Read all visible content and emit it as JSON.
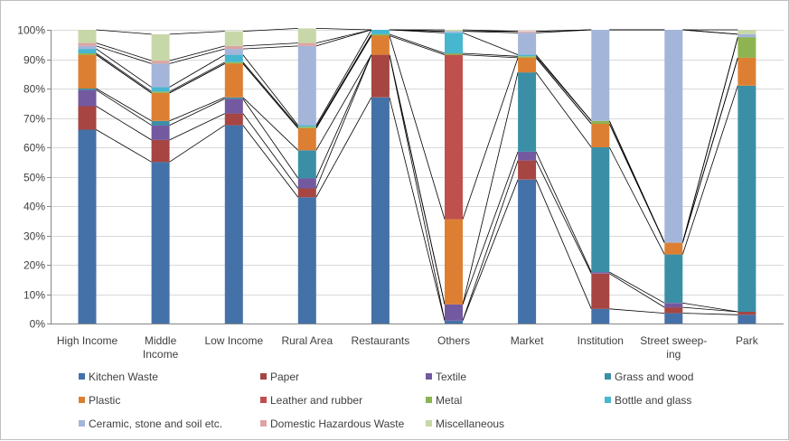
{
  "chart_data": {
    "type": "bar",
    "stacked": true,
    "percent": true,
    "connector_lines": true,
    "title": "",
    "xlabel": "",
    "ylabel": "",
    "ylim": [
      0,
      100
    ],
    "y_ticks": [
      "0%",
      "10%",
      "20%",
      "30%",
      "40%",
      "50%",
      "60%",
      "70%",
      "80%",
      "90%",
      "100%"
    ],
    "grid": "horizontal",
    "legend_position": "bottom",
    "categories": [
      [
        "High Income"
      ],
      [
        "Middle",
        "Income"
      ],
      [
        "Low Income"
      ],
      [
        "Rural Area"
      ],
      [
        "Restaurants"
      ],
      [
        "Others"
      ],
      [
        "Market"
      ],
      [
        "Institution"
      ],
      [
        "Street sweep-",
        "ing"
      ],
      [
        "Park"
      ]
    ],
    "series": [
      {
        "name": "Kitchen Waste",
        "color": "#4472a8",
        "values": [
          66,
          55,
          67.5,
          43,
          77,
          1,
          49,
          5,
          3.5,
          3
        ]
      },
      {
        "name": "Paper",
        "color": "#a64542",
        "values": [
          8,
          7.5,
          4,
          3,
          14.5,
          0,
          6.5,
          12,
          2,
          1
        ]
      },
      {
        "name": "Textile",
        "color": "#7359a0",
        "values": [
          5.5,
          5,
          5,
          3.5,
          0,
          5.5,
          3,
          0.5,
          1.5,
          0
        ]
      },
      {
        "name": "Grass and wood",
        "color": "#3a8fa6",
        "values": [
          0.5,
          1.5,
          0.5,
          9.5,
          0,
          0,
          27,
          42.5,
          16.5,
          77
        ]
      },
      {
        "name": "Plastic",
        "color": "#dd7f33",
        "values": [
          11.5,
          9.5,
          11.5,
          7.5,
          6.5,
          29,
          5,
          8,
          4,
          9.5
        ]
      },
      {
        "name": "Leather and rubber",
        "color": "#c0504d",
        "values": [
          0,
          0,
          0,
          0,
          0,
          56,
          0,
          0,
          0,
          0
        ]
      },
      {
        "name": "Metal",
        "color": "#8db450",
        "values": [
          0.5,
          0.5,
          0.5,
          0.5,
          0.5,
          0.5,
          0.5,
          1,
          0,
          7
        ]
      },
      {
        "name": "Bottle and glass",
        "color": "#47b6cf",
        "values": [
          1.5,
          1.5,
          2.5,
          0.5,
          1.5,
          7,
          0.5,
          0,
          0,
          0
        ]
      },
      {
        "name": "Ceramic, stone and soil etc.",
        "color": "#a3b5d9",
        "values": [
          1,
          8,
          2,
          27,
          0,
          0.5,
          7.5,
          31,
          72.5,
          1
        ]
      },
      {
        "name": "Domestic Hazardous Waste",
        "color": "#dca4a3",
        "values": [
          1,
          1,
          1,
          1,
          0,
          0,
          0.5,
          0,
          0,
          0
        ]
      },
      {
        "name": "Miscellaneous",
        "color": "#c8d7a8",
        "values": [
          4.5,
          9,
          5,
          5,
          0,
          0.5,
          0,
          0,
          0,
          1.5
        ]
      }
    ]
  }
}
